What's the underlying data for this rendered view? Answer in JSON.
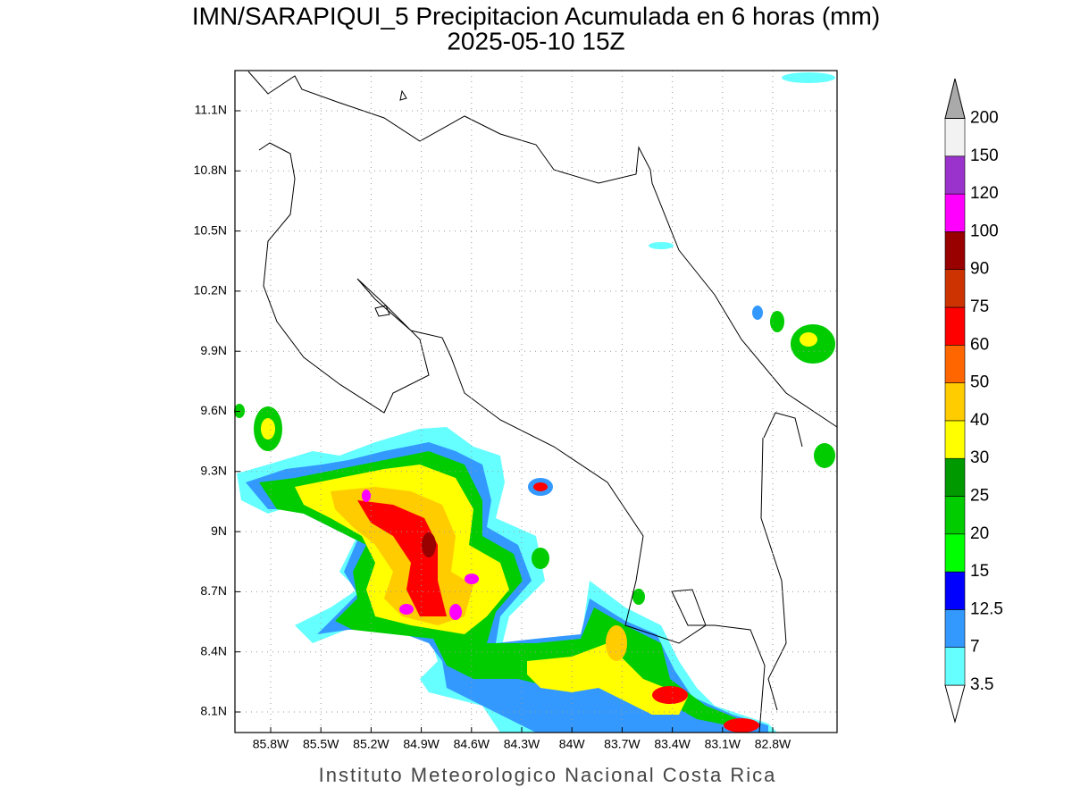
{
  "header": {
    "title": "IMN/SARAPIQUI_5 Precipitacion Acumulada en 6 horas (mm)",
    "subtitle": "2025-05-10 15Z"
  },
  "map": {
    "lon_ticks": [
      "85.8W",
      "85.5W",
      "85.2W",
      "84.9W",
      "84.6W",
      "84.3W",
      "84W",
      "83.7W",
      "83.4W",
      "83.1W",
      "82.8W"
    ],
    "lat_ticks": [
      "11.1N",
      "10.8N",
      "10.5N",
      "10.2N",
      "9.9N",
      "9.6N",
      "9.3N",
      "9N",
      "8.7N",
      "8.4N",
      "8.1N"
    ]
  },
  "colorbar": {
    "levels": [
      3.5,
      7,
      12.5,
      15,
      20,
      25,
      30,
      40,
      50,
      60,
      75,
      90,
      100,
      120,
      150,
      200
    ],
    "colors": [
      "#ffffff",
      "#66ffff",
      "#3399ff",
      "#0000ff",
      "#00ff00",
      "#00cc00",
      "#009900",
      "#ffff00",
      "#ffcc00",
      "#ff6600",
      "#ff0000",
      "#cc3300",
      "#990000",
      "#ff00ff",
      "#9933cc",
      "#f2f2f2",
      "#aaaaaa"
    ]
  },
  "footer": "Instituto Meteorologico Nacional Costa Rica"
}
